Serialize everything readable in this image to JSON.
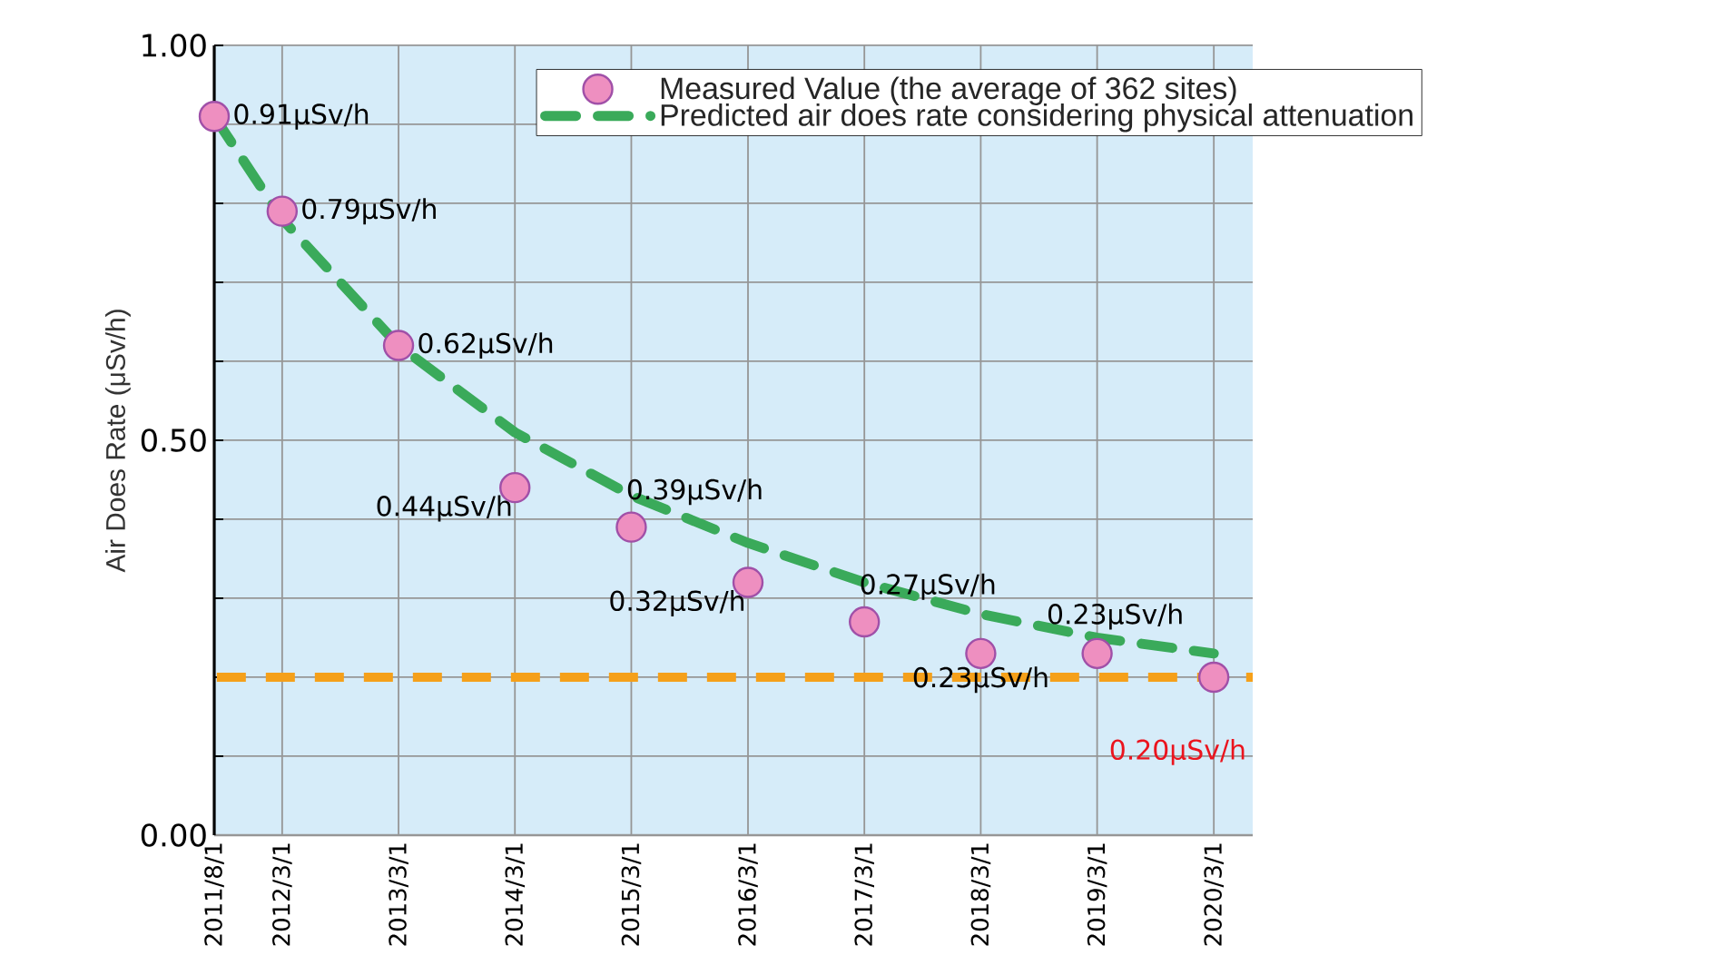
{
  "chart_data": {
    "type": "line",
    "ylabel": "Air Does Rate (μSv/h)",
    "x": [
      "2011-08-01",
      "2012-03-01",
      "2013-03-01",
      "2014-03-01",
      "2015-03-01",
      "2016-03-01",
      "2017-03-01",
      "2018-03-01",
      "2019-03-01",
      "2020-03-01"
    ],
    "series": [
      {
        "name": "Measured Value (the average of 362 sites)",
        "type": "scatter",
        "marker": "circle",
        "color": "#ee8fc0",
        "values": [
          0.91,
          0.79,
          0.62,
          0.44,
          0.39,
          0.32,
          0.27,
          0.23,
          0.23,
          0.2
        ],
        "value_labels": [
          "0.91μSv/h",
          "0.79μSv/h",
          "0.62μSv/h",
          "0.44μSv/h",
          "0.39μSv/h",
          "0.32μSv/h",
          "0.27μSv/h",
          "0.23μSv/h",
          "0.23μSv/h",
          null
        ]
      },
      {
        "name": "Predicted air does rate considering physical attenuation",
        "line_style": "dashed",
        "color": "#3aaa5a",
        "values": [
          0.91,
          0.78,
          0.62,
          0.51,
          0.43,
          0.37,
          0.32,
          0.28,
          0.25,
          0.23
        ]
      }
    ],
    "xlim": [
      "2011-08-01",
      "2020-07-01"
    ],
    "xticks": [
      {
        "value": "2011-08-01",
        "label": "2011/8/1"
      },
      {
        "value": "2012-03-01",
        "label": "2012/3/1"
      },
      {
        "value": "2013-03-01",
        "label": "2013/3/1"
      },
      {
        "value": "2014-03-01",
        "label": "2014/3/1"
      },
      {
        "value": "2015-03-01",
        "label": "2015/3/1"
      },
      {
        "value": "2016-03-01",
        "label": "2016/3/1"
      },
      {
        "value": "2017-03-01",
        "label": "2017/3/1"
      },
      {
        "value": "2018-03-01",
        "label": "2018/3/1"
      },
      {
        "value": "2019-03-01",
        "label": "2019/3/1"
      },
      {
        "value": "2020-03-01",
        "label": "2020/3/1"
      }
    ],
    "ylim": [
      0,
      1
    ],
    "yticks": [
      {
        "value": 0,
        "label": "0.00"
      },
      {
        "value": 0.1,
        "label": null
      },
      {
        "value": 0.2,
        "label": null
      },
      {
        "value": 0.3,
        "label": null
      },
      {
        "value": 0.4,
        "label": null
      },
      {
        "value": 0.5,
        "label": "0.50"
      },
      {
        "value": 0.6,
        "label": null
      },
      {
        "value": 0.7,
        "label": null
      },
      {
        "value": 0.8,
        "label": null
      },
      {
        "value": 0.9,
        "label": null
      },
      {
        "value": 1,
        "label": "1.00"
      }
    ],
    "ref_lines": [
      {
        "axis": "y",
        "value": 0.2,
        "label": "0.20μSv/h",
        "color": "#f5a01a",
        "line_style": "dashed"
      }
    ],
    "grid": true,
    "legend": "top right"
  }
}
